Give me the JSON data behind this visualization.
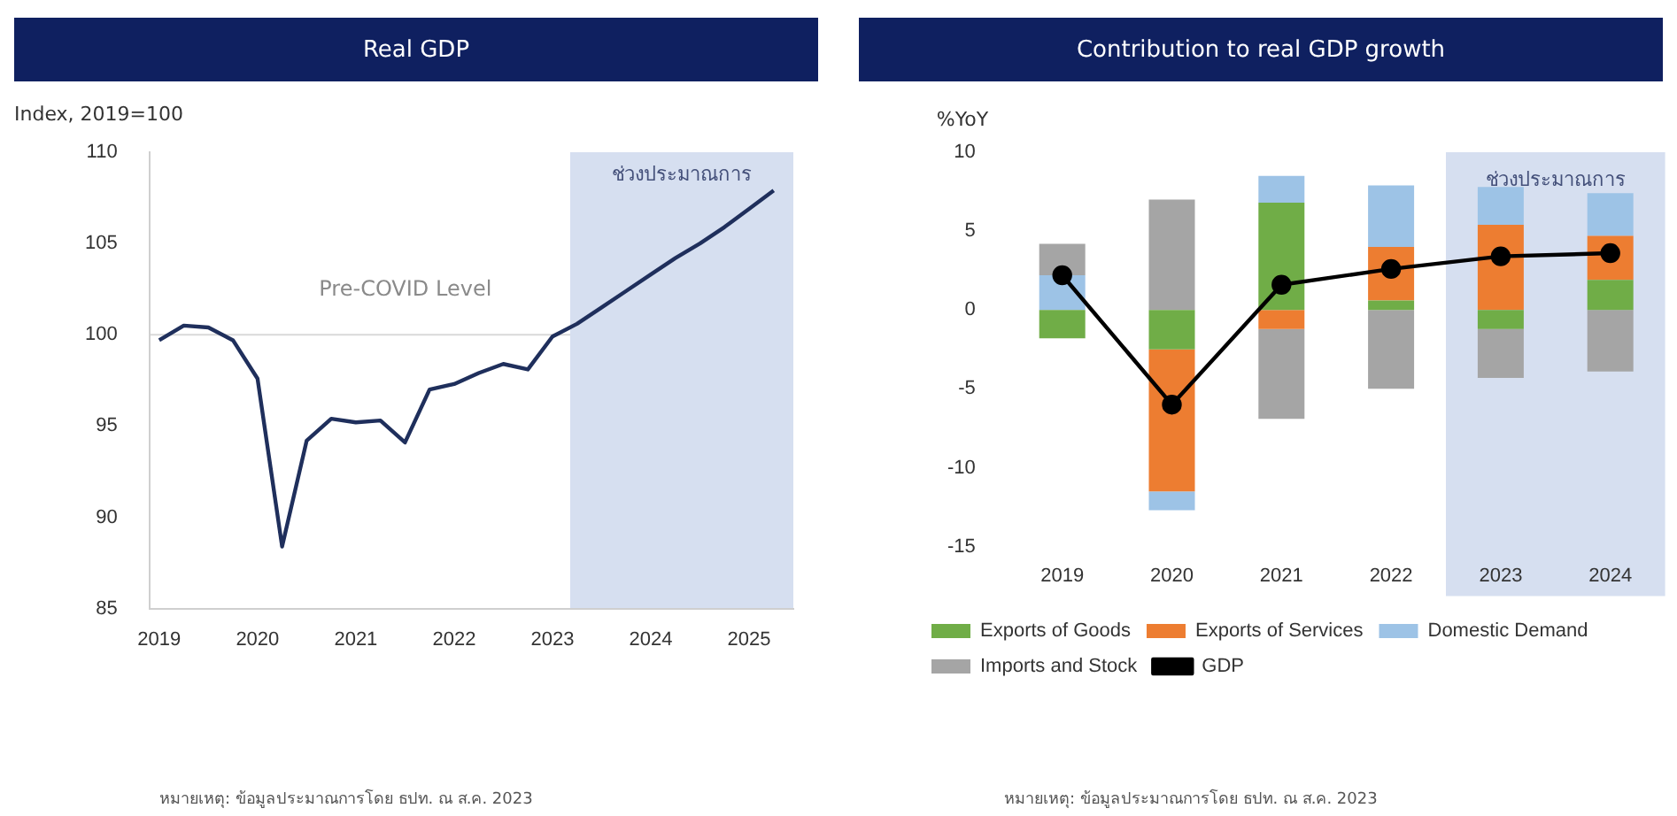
{
  "chart_data": [
    {
      "type": "line",
      "title": "Real GDP",
      "ylabel": "Index, 2019=100",
      "x": [
        2019,
        2019.25,
        2019.5,
        2019.75,
        2020,
        2020.25,
        2020.5,
        2020.75,
        2021,
        2021.25,
        2021.5,
        2021.75,
        2022,
        2022.25,
        2022.5,
        2022.75,
        2023,
        2023.25,
        2023.5,
        2023.75,
        2024,
        2024.25,
        2024.5,
        2024.75,
        2025,
        2025.25
      ],
      "series": [
        {
          "color": "#1f2f5c",
          "values": [
            99.7,
            100.5,
            100.4,
            99.7,
            97.6,
            88.4,
            94.2,
            95.4,
            95.2,
            95.3,
            94.1,
            97.0,
            97.3,
            97.9,
            98.4,
            98.1,
            99.9,
            100.6,
            101.5,
            102.4,
            103.3,
            104.2,
            105.0,
            105.9,
            106.9,
            107.9
          ]
        }
      ],
      "xlim": [
        2018.9,
        2025.45
      ],
      "xticks": [
        2019,
        2020,
        2021,
        2022,
        2023,
        2024,
        2025
      ],
      "ylim": [
        85,
        110
      ],
      "yticks": [
        85,
        90,
        95,
        100,
        105,
        110
      ],
      "ref_lines": [
        {
          "axis": "y",
          "value": 100,
          "label": "Pre-COVID Level",
          "color": "#d9d9d9"
        }
      ],
      "bands": [
        {
          "axis": "x",
          "from": 2023.18,
          "to": 2025.45,
          "label": "ช่วงประมาณการ",
          "color": "#d6dff0"
        }
      ],
      "annotations": [
        "หมายเหตุ: ข้อมูลประมาณการโดย ธปท. ณ ส.ค. 2023"
      ],
      "marker": "none",
      "legend": false
    },
    {
      "type": "bar",
      "stacked": true,
      "title": "Contribution to real GDP growth",
      "ylabel": "%YoY",
      "categories": [
        "2019",
        "2020",
        "2021",
        "2022",
        "2023",
        "2024"
      ],
      "series": [
        {
          "name": "Exports of Goods",
          "color": "#70ad47",
          "values": [
            -1.8,
            -2.5,
            6.8,
            0.6,
            -1.2,
            1.9
          ]
        },
        {
          "name": "Exports of Services",
          "color": "#ed7d31",
          "values": [
            0,
            -9.0,
            -1.2,
            3.4,
            5.4,
            2.8
          ]
        },
        {
          "name": "Domestic Demand",
          "color": "#9dc3e6",
          "values": [
            2.2,
            -1.2,
            1.7,
            3.9,
            2.4,
            2.7
          ]
        },
        {
          "name": "Imports and Stock",
          "color": "#a5a5a5",
          "values": [
            2.0,
            7.0,
            -5.7,
            -5.0,
            -3.1,
            -3.9
          ]
        },
        {
          "name": "GDP",
          "type": "line",
          "color": "#000000",
          "values": [
            2.2,
            -6.0,
            1.6,
            2.6,
            3.4,
            3.6
          ]
        }
      ],
      "ylim": [
        -15,
        10
      ],
      "yticks": [
        -15,
        -10,
        -5,
        0,
        5,
        10
      ],
      "bands": [
        {
          "axis": "x",
          "from": "2023",
          "to": "2024",
          "label": "ช่วงประมาณการ",
          "color": "#d6dff0"
        }
      ],
      "annotations": [
        "หมายเหตุ: ข้อมูลประมาณการโดย ธปท. ณ ส.ค. 2023"
      ],
      "marker": "circle",
      "legend": "bottom"
    }
  ]
}
